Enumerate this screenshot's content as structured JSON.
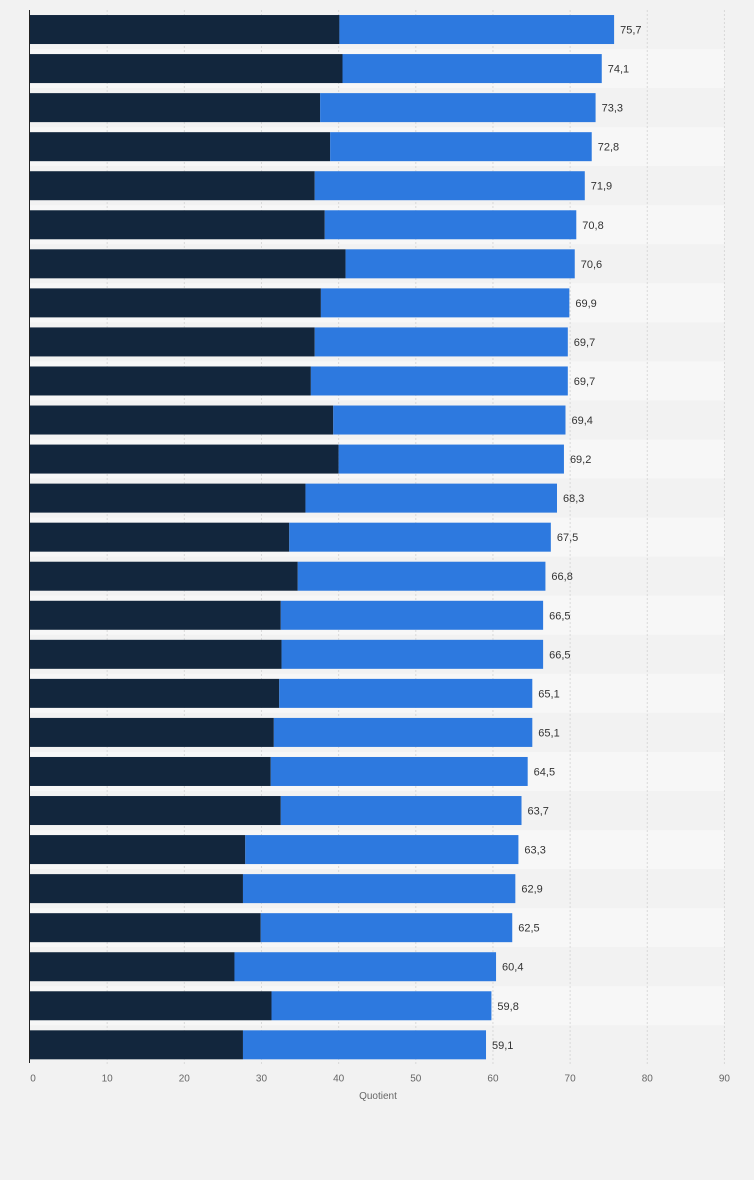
{
  "chart_data": {
    "type": "bar",
    "orientation": "horizontal",
    "stacked": true,
    "xlabel": "Quotient",
    "xlim": [
      0,
      90
    ],
    "xticks": [
      0,
      10,
      20,
      30,
      40,
      50,
      60,
      70,
      80,
      90
    ],
    "grid": true,
    "legend": "none",
    "colors": {
      "series1": "#12263d",
      "series2": "#2d79df",
      "background": "#f2f2f2",
      "stripe": "#f7f7f7",
      "grid": "#d9d9d9",
      "axis": "#222222"
    },
    "series": [
      {
        "values": [
          40.1,
          40.5,
          37.6,
          38.9,
          36.9,
          38.2,
          40.9,
          37.7,
          36.9,
          36.4,
          39.3,
          40.0,
          35.7,
          33.6,
          34.7,
          32.5,
          32.6,
          32.3,
          31.6,
          31.2,
          32.5,
          27.9,
          27.6,
          29.9,
          26.5,
          31.3,
          27.6
        ]
      },
      {
        "values": [
          35.6,
          33.6,
          35.7,
          33.9,
          35.0,
          32.6,
          29.7,
          32.2,
          32.8,
          33.3,
          30.1,
          29.2,
          32.6,
          33.9,
          32.1,
          34.0,
          33.9,
          32.8,
          33.5,
          33.3,
          31.2,
          35.4,
          35.3,
          32.6,
          33.9,
          28.5,
          31.5
        ]
      }
    ],
    "totals": [
      "75,7",
      "74,1",
      "73,3",
      "72,8",
      "71,9",
      "70,8",
      "70,6",
      "69,9",
      "69,7",
      "69,7",
      "69,4",
      "69,2",
      "68,3",
      "67,5",
      "66,8",
      "66,5",
      "66,5",
      "65,1",
      "65,1",
      "64,5",
      "63,7",
      "63,3",
      "62,9",
      "62,5",
      "60,4",
      "59,8",
      "59,1"
    ],
    "total_values": [
      75.7,
      74.1,
      73.3,
      72.8,
      71.9,
      70.8,
      70.6,
      69.9,
      69.7,
      69.7,
      69.4,
      69.2,
      68.3,
      67.5,
      66.8,
      66.5,
      66.5,
      65.1,
      65.1,
      64.5,
      63.7,
      63.3,
      62.9,
      62.5,
      60.4,
      59.8,
      59.1
    ]
  }
}
